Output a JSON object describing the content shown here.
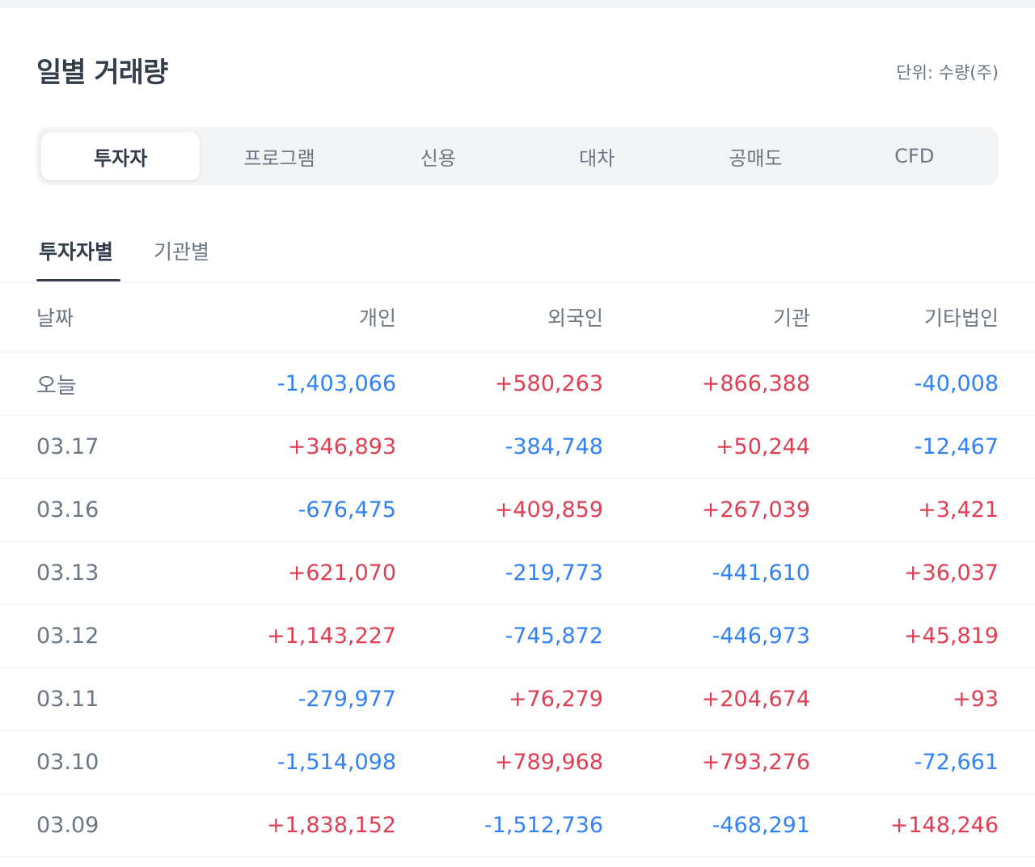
{
  "title": "일별 거래량",
  "unit_label": "단위: 수량(주)",
  "segment_tabs": [
    {
      "label": "투자자",
      "active": true
    },
    {
      "label": "프로그램",
      "active": false
    },
    {
      "label": "신용",
      "active": false
    },
    {
      "label": "대차",
      "active": false
    },
    {
      "label": "공매도",
      "active": false
    },
    {
      "label": "CFD",
      "active": false
    }
  ],
  "sub_tabs": [
    {
      "label": "투자자별",
      "active": true
    },
    {
      "label": "기관별",
      "active": false
    }
  ],
  "table": {
    "headers": {
      "date": "날짜",
      "individual": "개인",
      "foreign": "외국인",
      "institution": "기관",
      "other_corp": "기타법인"
    },
    "rows": [
      {
        "date": "오늘",
        "individual": "-1,403,066",
        "foreign": "+580,263",
        "institution": "+866,388",
        "other_corp": "-40,008"
      },
      {
        "date": "03.17",
        "individual": "+346,893",
        "foreign": "-384,748",
        "institution": "+50,244",
        "other_corp": "-12,467"
      },
      {
        "date": "03.16",
        "individual": "-676,475",
        "foreign": "+409,859",
        "institution": "+267,039",
        "other_corp": "+3,421"
      },
      {
        "date": "03.13",
        "individual": "+621,070",
        "foreign": "-219,773",
        "institution": "-441,610",
        "other_corp": "+36,037"
      },
      {
        "date": "03.12",
        "individual": "+1,143,227",
        "foreign": "-745,872",
        "institution": "-446,973",
        "other_corp": "+45,819"
      },
      {
        "date": "03.11",
        "individual": "-279,977",
        "foreign": "+76,279",
        "institution": "+204,674",
        "other_corp": "+93"
      },
      {
        "date": "03.10",
        "individual": "-1,514,098",
        "foreign": "+789,968",
        "institution": "+793,276",
        "other_corp": "-72,661"
      },
      {
        "date": "03.09",
        "individual": "+1,838,152",
        "foreign": "-1,512,736",
        "institution": "-468,291",
        "other_corp": "+148,246"
      }
    ]
  },
  "colors": {
    "positive": "#e03e52",
    "negative": "#3182f6"
  }
}
